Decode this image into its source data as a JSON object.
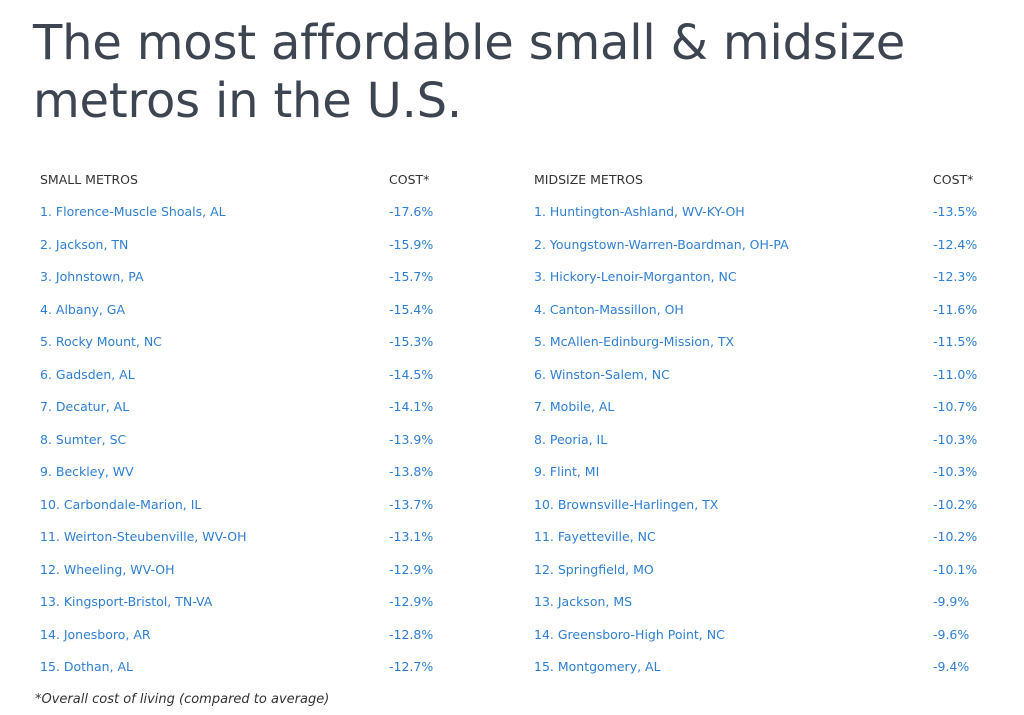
{
  "title": "The most affordable small & midsize metros in the U.S.",
  "small": {
    "header_name": "SMALL METROS",
    "header_cost": "COST*",
    "rows": [
      {
        "name": "1. Florence-Muscle Shoals, AL",
        "cost": "-17.6%"
      },
      {
        "name": "2. Jackson, TN",
        "cost": "-15.9%"
      },
      {
        "name": "3. Johnstown, PA",
        "cost": "-15.7%"
      },
      {
        "name": "4. Albany, GA",
        "cost": "-15.4%"
      },
      {
        "name": "5. Rocky Mount, NC",
        "cost": "-15.3%"
      },
      {
        "name": "6. Gadsden, AL",
        "cost": "-14.5%"
      },
      {
        "name": "7. Decatur, AL",
        "cost": "-14.1%"
      },
      {
        "name": "8. Sumter, SC",
        "cost": "-13.9%"
      },
      {
        "name": "9. Beckley, WV",
        "cost": "-13.8%"
      },
      {
        "name": "10. Carbondale-Marion, IL",
        "cost": "-13.7%"
      },
      {
        "name": "11. Weirton-Steubenville, WV-OH",
        "cost": "-13.1%"
      },
      {
        "name": "12. Wheeling, WV-OH",
        "cost": "-12.9%"
      },
      {
        "name": "13. Kingsport-Bristol, TN-VA",
        "cost": "-12.9%"
      },
      {
        "name": "14. Jonesboro, AR",
        "cost": "-12.8%"
      },
      {
        "name": "15. Dothan, AL",
        "cost": "-12.7%"
      }
    ]
  },
  "midsize": {
    "header_name": "MIDSIZE METROS",
    "header_cost": "COST*",
    "rows": [
      {
        "name": "1. Huntington-Ashland, WV-KY-OH",
        "cost": "-13.5%"
      },
      {
        "name": "2. Youngstown-Warren-Boardman, OH-PA",
        "cost": "-12.4%"
      },
      {
        "name": "3. Hickory-Lenoir-Morganton, NC",
        "cost": "-12.3%"
      },
      {
        "name": "4. Canton-Massillon, OH",
        "cost": "-11.6%"
      },
      {
        "name": "5. McAllen-Edinburg-Mission, TX",
        "cost": "-11.5%"
      },
      {
        "name": "6. Winston-Salem, NC",
        "cost": "-11.0%"
      },
      {
        "name": "7. Mobile, AL",
        "cost": "-10.7%"
      },
      {
        "name": "8. Peoria, IL",
        "cost": "-10.3%"
      },
      {
        "name": "9. Flint, MI",
        "cost": "-10.3%"
      },
      {
        "name": "10. Brownsville-Harlingen, TX",
        "cost": "-10.2%"
      },
      {
        "name": "11. Fayetteville, NC",
        "cost": "-10.2%"
      },
      {
        "name": "12. Springfield, MO",
        "cost": "-10.1%"
      },
      {
        "name": "13. Jackson, MS",
        "cost": "-9.9%"
      },
      {
        "name": "14. Greensboro-High Point, NC",
        "cost": "-9.6%"
      },
      {
        "name": "15. Montgomery, AL",
        "cost": "-9.4%"
      }
    ]
  },
  "footnote": "*Overall cost of living (compared to average)",
  "colors": {
    "title": "#3d4550",
    "link": "#2f7fd1",
    "header": "#333333"
  }
}
